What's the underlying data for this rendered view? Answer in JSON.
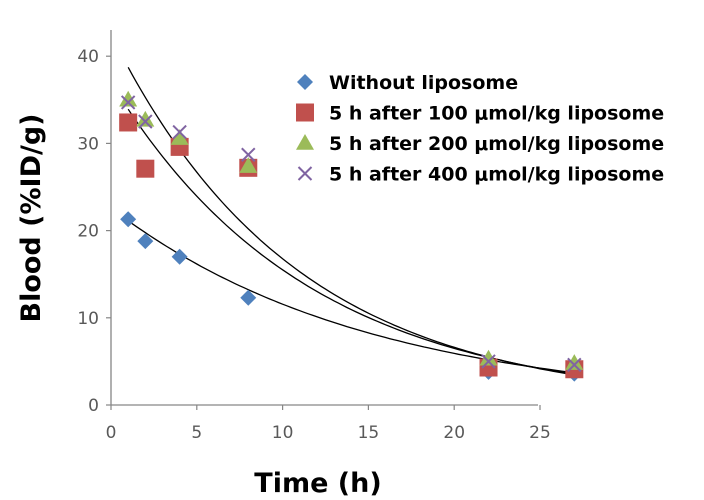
{
  "chart_data": {
    "type": "scatter",
    "xlabel": "Time (h)",
    "ylabel": "Blood (%ID/g)",
    "xlim": [
      0,
      27
    ],
    "ylim": [
      0,
      40
    ],
    "x_ticks": [
      "0",
      "5",
      "10",
      "15",
      "20",
      "25"
    ],
    "y_ticks": [
      "0",
      "10",
      "20",
      "30",
      "40"
    ],
    "grid": false,
    "legend_position": "top-right",
    "series": [
      {
        "name": "Without liposome",
        "marker": "diamond",
        "color": "#4F81BD",
        "x": [
          1,
          2,
          4,
          8,
          22,
          27
        ],
        "y": [
          21.3,
          18.8,
          17.0,
          12.3,
          3.8,
          3.6
        ]
      },
      {
        "name": "5 h after 100 μmol/kg liposome",
        "marker": "square",
        "color": "#C0504D",
        "x": [
          1,
          2,
          4,
          8,
          22,
          27
        ],
        "y": [
          32.4,
          27.1,
          29.6,
          27.2,
          4.3,
          4.1
        ]
      },
      {
        "name": "5 h after 200 μmol/kg liposome",
        "marker": "triangle",
        "color": "#9BBB59",
        "x": [
          1,
          2,
          4,
          8,
          22,
          27
        ],
        "y": [
          35.0,
          32.7,
          30.6,
          27.4,
          5.3,
          4.8
        ]
      },
      {
        "name": "5 h after 400 μmol/kg liposome",
        "marker": "x",
        "color": "#8064A2",
        "x": [
          1,
          2,
          4,
          8,
          22,
          27
        ],
        "y": [
          34.7,
          32.5,
          31.3,
          28.7,
          5.0,
          4.6
        ]
      }
    ],
    "trendlines": [
      {
        "type": "exponential",
        "a": 22.6,
        "k": 0.067,
        "x_range": [
          1,
          27
        ]
      },
      {
        "type": "exponential",
        "a": 37.0,
        "k": 0.087,
        "x_range": [
          1,
          27
        ]
      },
      {
        "type": "exponential",
        "a": 42.5,
        "k": 0.093,
        "x_range": [
          1,
          27
        ]
      }
    ]
  }
}
